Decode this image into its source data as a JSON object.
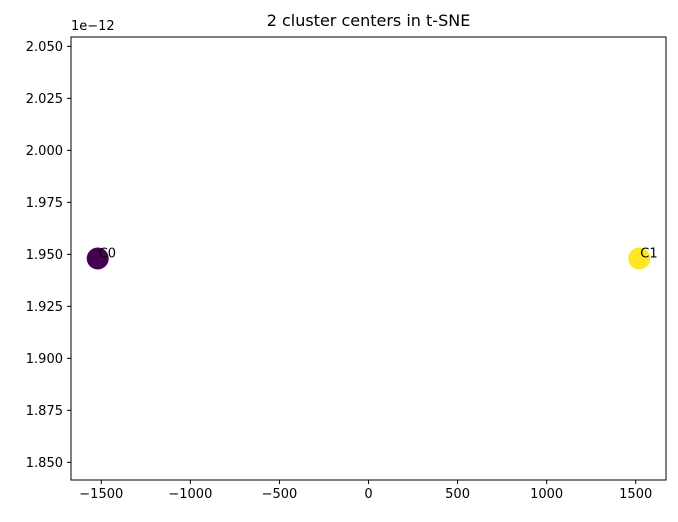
{
  "chart_data": {
    "type": "scatter",
    "title": "2 cluster centers in t-SNE",
    "xlabel": "",
    "ylabel": "",
    "y_offset_text": "1e−12",
    "xlim": [
      -1670,
      1670
    ],
    "ylim": [
      1.8415,
      2.0545
    ],
    "x_ticks": [
      -1500,
      -1000,
      -500,
      0,
      500,
      1000,
      1500
    ],
    "x_tick_labels": [
      "−1500",
      "−1000",
      "−500",
      "0",
      "500",
      "1000",
      "1500"
    ],
    "y_ticks": [
      1.85,
      1.875,
      1.9,
      1.925,
      1.95,
      1.975,
      2.0,
      2.025,
      2.05
    ],
    "y_tick_labels": [
      "1.850",
      "1.875",
      "1.900",
      "1.925",
      "1.950",
      "1.975",
      "2.000",
      "2.025",
      "2.050"
    ],
    "grid": false,
    "points": [
      {
        "label": "C0",
        "x": -1520,
        "y": 1.948,
        "color": "#440154"
      },
      {
        "label": "C1",
        "x": 1520,
        "y": 1.948,
        "color": "#fde725"
      }
    ]
  }
}
